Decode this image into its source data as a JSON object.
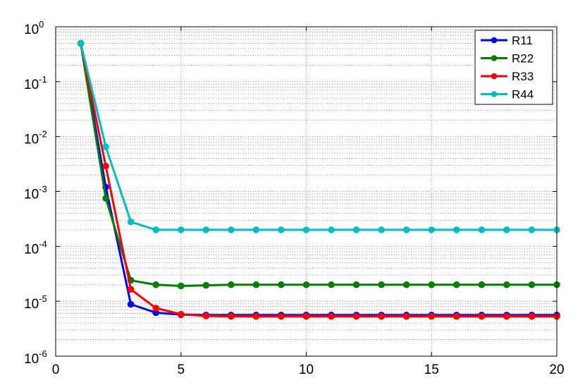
{
  "chart_data": {
    "type": "line",
    "title": "",
    "xlabel": "",
    "ylabel": "",
    "x": [
      1,
      2,
      3,
      4,
      5,
      6,
      7,
      8,
      9,
      10,
      11,
      12,
      13,
      14,
      15,
      16,
      17,
      18,
      19,
      20
    ],
    "xlim": [
      0,
      20
    ],
    "ylim": [
      1e-06,
      1
    ],
    "yscale": "log",
    "grid": true,
    "legend_position": "top-right",
    "x_ticks": [
      0,
      5,
      10,
      15,
      20
    ],
    "x_tick_labels": [
      "0",
      "5",
      "10",
      "15",
      "20"
    ],
    "y_ticks": [
      {
        "value": 1e-06,
        "base": "10",
        "exp": "-6"
      },
      {
        "value": 1e-05,
        "base": "10",
        "exp": "-5"
      },
      {
        "value": 0.0001,
        "base": "10",
        "exp": "-4"
      },
      {
        "value": 0.001,
        "base": "10",
        "exp": "-3"
      },
      {
        "value": 0.01,
        "base": "10",
        "exp": "-2"
      },
      {
        "value": 0.1,
        "base": "10",
        "exp": "-1"
      },
      {
        "value": 1,
        "base": "10",
        "exp": "0"
      }
    ],
    "series": [
      {
        "name": "R11",
        "color": "#0000ff",
        "values": [
          0.5,
          0.0012,
          8.8e-06,
          6.2e-06,
          5.7e-06,
          5.6e-06,
          5.6e-06,
          5.6e-06,
          5.6e-06,
          5.6e-06,
          5.6e-06,
          5.6e-06,
          5.6e-06,
          5.6e-06,
          5.6e-06,
          5.6e-06,
          5.6e-06,
          5.6e-06,
          5.6e-06,
          5.6e-06
        ]
      },
      {
        "name": "R22",
        "color": "#007f00",
        "values": [
          0.5,
          0.00075,
          2.4e-05,
          2e-05,
          1.9e-05,
          1.95e-05,
          2e-05,
          2e-05,
          2e-05,
          2e-05,
          2e-05,
          2e-05,
          2e-05,
          2e-05,
          2e-05,
          2e-05,
          2e-05,
          2e-05,
          2e-05,
          2e-05
        ]
      },
      {
        "name": "R33",
        "color": "#ff0000",
        "values": [
          0.5,
          0.0029,
          1.65e-05,
          7.5e-06,
          5.8e-06,
          5.4e-06,
          5.3e-06,
          5.3e-06,
          5.3e-06,
          5.3e-06,
          5.3e-06,
          5.3e-06,
          5.3e-06,
          5.3e-06,
          5.3e-06,
          5.3e-06,
          5.3e-06,
          5.3e-06,
          5.3e-06,
          5.3e-06
        ]
      },
      {
        "name": "R44",
        "color": "#00bfbf",
        "values": [
          0.5,
          0.0065,
          0.00028,
          0.0002,
          0.0002,
          0.0002,
          0.0002,
          0.0002,
          0.0002,
          0.0002,
          0.0002,
          0.0002,
          0.0002,
          0.0002,
          0.0002,
          0.0002,
          0.0002,
          0.0002,
          0.0002,
          0.0002
        ]
      }
    ]
  }
}
